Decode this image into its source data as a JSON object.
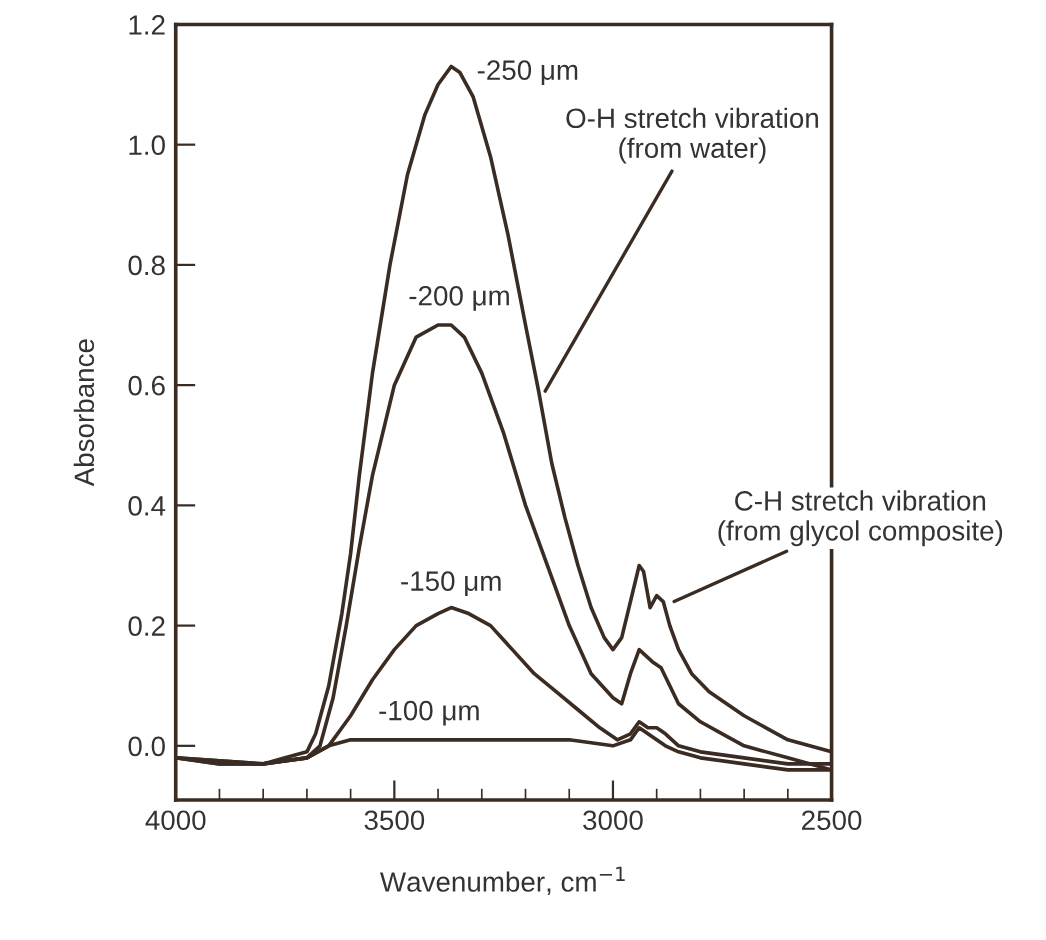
{
  "chart_data": {
    "type": "line",
    "xlabel": "Wavenumber, cm$^{−1}$",
    "ylabel": "Absorbance",
    "xlim": [
      4000,
      2500
    ],
    "xticks": [
      4000,
      3500,
      3000,
      2500
    ],
    "ylim": [
      -0.09,
      1.2
    ],
    "yticks": [
      {
        "value": 0,
        "label": "0.0"
      },
      {
        "value": 0.2,
        "label": "0.2"
      },
      {
        "value": 0.4,
        "label": "0.4"
      },
      {
        "value": 0.6,
        "label": "0.6"
      },
      {
        "value": 0.8,
        "label": "0.8"
      },
      {
        "value": 1.0,
        "label": "1.0"
      },
      {
        "value": 1.2,
        "label": "1.2"
      }
    ],
    "grid": false,
    "marker": "none",
    "line_style": "solid",
    "series": [
      {
        "color": "#3a2c22",
        "x": [
          4000,
          3900,
          3800,
          3750,
          3700,
          3680,
          3650,
          3620,
          3600,
          3580,
          3550,
          3510,
          3470,
          3430,
          3400,
          3370,
          3350,
          3320,
          3280,
          3240,
          3200,
          3170,
          3140,
          3110,
          3080,
          3050,
          3020,
          3000,
          2980,
          2960,
          2940,
          2930,
          2915,
          2900,
          2885,
          2870,
          2850,
          2820,
          2780,
          2740,
          2700,
          2650,
          2600,
          2550,
          2500
        ],
        "values": [
          -0.02,
          -0.03,
          -0.03,
          -0.02,
          -0.01,
          0.02,
          0.1,
          0.22,
          0.32,
          0.45,
          0.62,
          0.8,
          0.95,
          1.05,
          1.1,
          1.13,
          1.12,
          1.08,
          0.98,
          0.85,
          0.7,
          0.59,
          0.47,
          0.38,
          0.3,
          0.23,
          0.18,
          0.16,
          0.18,
          0.24,
          0.3,
          0.29,
          0.23,
          0.25,
          0.24,
          0.2,
          0.16,
          0.12,
          0.09,
          0.07,
          0.05,
          0.03,
          0.01,
          0.0,
          -0.01
        ]
      },
      {
        "color": "#3a2c22",
        "x": [
          4000,
          3900,
          3800,
          3700,
          3670,
          3640,
          3610,
          3580,
          3550,
          3500,
          3450,
          3400,
          3370,
          3340,
          3300,
          3250,
          3200,
          3150,
          3100,
          3050,
          3000,
          2980,
          2960,
          2940,
          2925,
          2910,
          2890,
          2870,
          2850,
          2800,
          2750,
          2700,
          2600,
          2500
        ],
        "values": [
          -0.02,
          -0.03,
          -0.03,
          -0.02,
          0.0,
          0.08,
          0.2,
          0.33,
          0.45,
          0.6,
          0.68,
          0.7,
          0.7,
          0.68,
          0.62,
          0.52,
          0.4,
          0.3,
          0.2,
          0.12,
          0.08,
          0.07,
          0.12,
          0.16,
          0.15,
          0.14,
          0.13,
          0.1,
          0.07,
          0.04,
          0.02,
          0.0,
          -0.02,
          -0.04
        ]
      },
      {
        "color": "#3a2c22",
        "x": [
          4000,
          3800,
          3700,
          3650,
          3600,
          3550,
          3500,
          3450,
          3400,
          3370,
          3330,
          3280,
          3230,
          3180,
          3130,
          3080,
          3030,
          2990,
          2960,
          2940,
          2920,
          2900,
          2880,
          2850,
          2800,
          2700,
          2600,
          2500
        ],
        "values": [
          -0.02,
          -0.03,
          -0.02,
          0.0,
          0.05,
          0.11,
          0.16,
          0.2,
          0.22,
          0.23,
          0.22,
          0.2,
          0.16,
          0.12,
          0.09,
          0.06,
          0.03,
          0.01,
          0.02,
          0.04,
          0.03,
          0.03,
          0.02,
          0.0,
          -0.01,
          -0.02,
          -0.03,
          -0.03
        ]
      },
      {
        "color": "#3a2c22",
        "x": [
          4000,
          3800,
          3700,
          3650,
          3600,
          3500,
          3400,
          3300,
          3200,
          3100,
          3000,
          2960,
          2940,
          2920,
          2900,
          2880,
          2850,
          2800,
          2700,
          2600,
          2500
        ],
        "values": [
          -0.02,
          -0.03,
          -0.02,
          0.0,
          0.01,
          0.01,
          0.01,
          0.01,
          0.01,
          0.01,
          0.0,
          0.01,
          0.03,
          0.02,
          0.01,
          0.0,
          -0.01,
          -0.02,
          -0.03,
          -0.04,
          -0.04
        ]
      }
    ],
    "annotations": [
      {
        "text": "-250 μm",
        "x": 3350,
        "y": 1.12
      },
      {
        "text": "-200 μm",
        "x": 3370,
        "y": 0.7
      },
      {
        "text": "-150 μm",
        "x": 3370,
        "y": 0.23
      },
      {
        "text": "-100 μm",
        "x": 3420,
        "y": 0.01
      },
      {
        "text": "O-H stretch vibration\n(from water)",
        "x": 3155,
        "y": 0.59
      },
      {
        "text": "C-H stretch vibration\n(from glycol composite)",
        "x": 2860,
        "y": 0.24
      }
    ]
  }
}
